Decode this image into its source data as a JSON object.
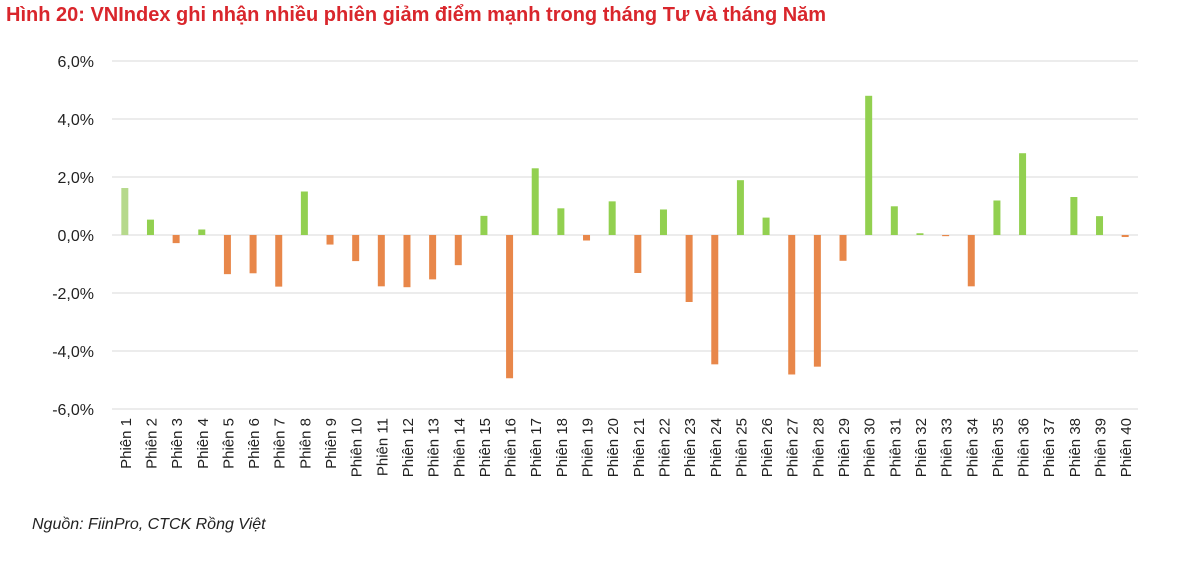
{
  "title": "Hình 20: VNIndex ghi nhận nhiều phiên giảm điểm mạnh trong tháng Tư và tháng Năm",
  "source": "Nguồn: FiinPro, CTCK Rồng Việt",
  "colors": {
    "positive": "#92d050",
    "negative": "#e8874a",
    "first": "#b6d98c",
    "title": "#d9262c",
    "grid": "#d9d9d9"
  },
  "chart_data": {
    "type": "bar",
    "title": "Hình 20: VNIndex ghi nhận nhiều phiên giảm điểm mạnh trong tháng Tư và tháng Năm",
    "xlabel": "",
    "ylabel": "",
    "ylim": [
      -6,
      6
    ],
    "yticks": [
      6,
      4,
      2,
      0,
      -2,
      -4,
      -6
    ],
    "ytick_labels": [
      "6,0%",
      "4,0%",
      "2,0%",
      "0,0%",
      "-2,0%",
      "-4,0%",
      "-6,0%"
    ],
    "grid": true,
    "legend": "none",
    "categories": [
      "Phiên 1",
      "Phiên 2",
      "Phiên 3",
      "Phiên 4",
      "Phiên 5",
      "Phiên 6",
      "Phiên 7",
      "Phiên 8",
      "Phiên 9",
      "Phiên 10",
      "Phiên 11",
      "Phiên 12",
      "Phiên 13",
      "Phiên 14",
      "Phiên 15",
      "Phiên 16",
      "Phiên 17",
      "Phiên 18",
      "Phiên 19",
      "Phiên 20",
      "Phiên 21",
      "Phiên 22",
      "Phiên 23",
      "Phiên 24",
      "Phiên 25",
      "Phiên 26",
      "Phiên 27",
      "Phiên 28",
      "Phiên 29",
      "Phiên 30",
      "Phiên 31",
      "Phiên 32",
      "Phiên 33",
      "Phiên 34",
      "Phiên 35",
      "Phiên 36",
      "Phiên 37",
      "Phiên 38",
      "Phiên 39",
      "Phiên 40"
    ],
    "values": [
      1.62,
      0.53,
      -0.28,
      0.19,
      -1.35,
      -1.32,
      -1.78,
      1.5,
      -0.33,
      -0.9,
      -1.77,
      -1.8,
      -1.53,
      -1.04,
      0.66,
      -4.94,
      2.3,
      0.92,
      -0.19,
      1.16,
      -1.31,
      0.88,
      -2.31,
      -4.46,
      1.89,
      0.6,
      -4.81,
      -4.54,
      -0.89,
      4.8,
      0.99,
      0.06,
      -0.04,
      -1.77,
      1.19,
      2.82,
      0.0,
      1.31,
      0.65,
      -0.07
    ]
  }
}
